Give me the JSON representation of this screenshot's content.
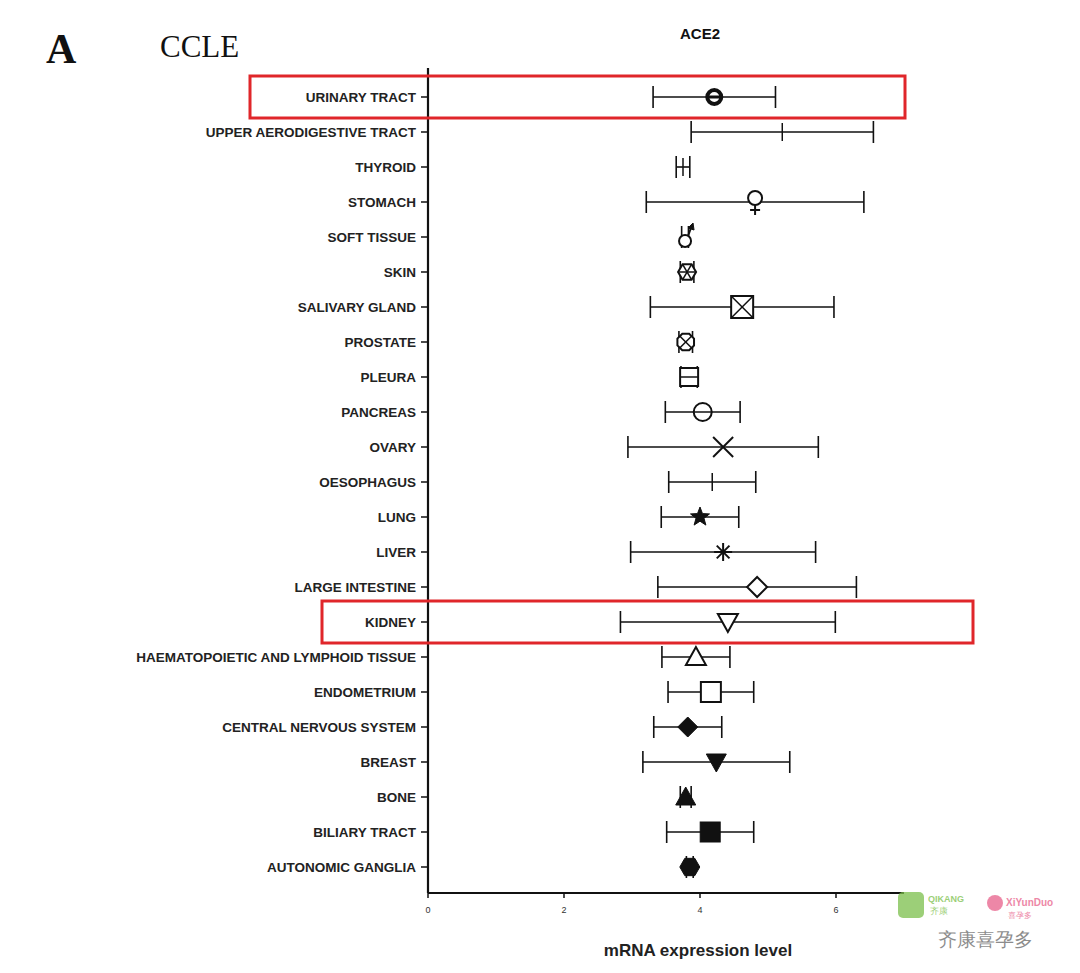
{
  "panel_label": "A",
  "dataset_label": "CCLE",
  "chart_data": {
    "type": "dot_errorbar",
    "orientation": "horizontal",
    "title": "ACE2",
    "x_label": "mRNA expression level",
    "categories": [
      "URINARY TRACT",
      "UPPER AERODIGESTIVE TRACT",
      "THYROID",
      "STOMACH",
      "SOFT TISSUE",
      "SKIN",
      "SALIVARY GLAND",
      "PROSTATE",
      "PLEURA",
      "PANCREAS",
      "OVARY",
      "OESOPHAGUS",
      "LUNG",
      "LIVER",
      "LARGE INTESTINE",
      "KIDNEY",
      "HAEMATOPOIETIC AND LYMPHOID TISSUE",
      "ENDOMETRIUM",
      "CENTRAL NERVOUS SYSTEM",
      "BREAST",
      "BONE",
      "BILIARY TRACT",
      "AUTONOMIC GANGLIA"
    ],
    "values": [
      4.21,
      5.21,
      3.75,
      4.81,
      3.78,
      3.81,
      4.62,
      3.79,
      3.84,
      4.04,
      4.34,
      4.18,
      4.0,
      4.34,
      4.84,
      4.41,
      3.94,
      4.16,
      3.82,
      4.24,
      3.79,
      4.15,
      3.85
    ],
    "errors": [
      0.9,
      1.34,
      0.1,
      1.6,
      0.05,
      0.1,
      1.35,
      0.1,
      0.12,
      0.55,
      1.4,
      0.64,
      0.57,
      1.36,
      1.46,
      1.58,
      0.5,
      0.63,
      0.5,
      1.08,
      0.08,
      0.64,
      0.05
    ],
    "color": "#111111",
    "xlim": [
      0,
      7
    ],
    "xticks": [
      0,
      2,
      4,
      6
    ],
    "grid": false
  },
  "watermark": {
    "logo1": "QIKANG",
    "logo1_cn": "齐康",
    "logo2": "XiYunDuo",
    "logo2_cn": "喜孕多",
    "text": "齐康喜孕多"
  }
}
